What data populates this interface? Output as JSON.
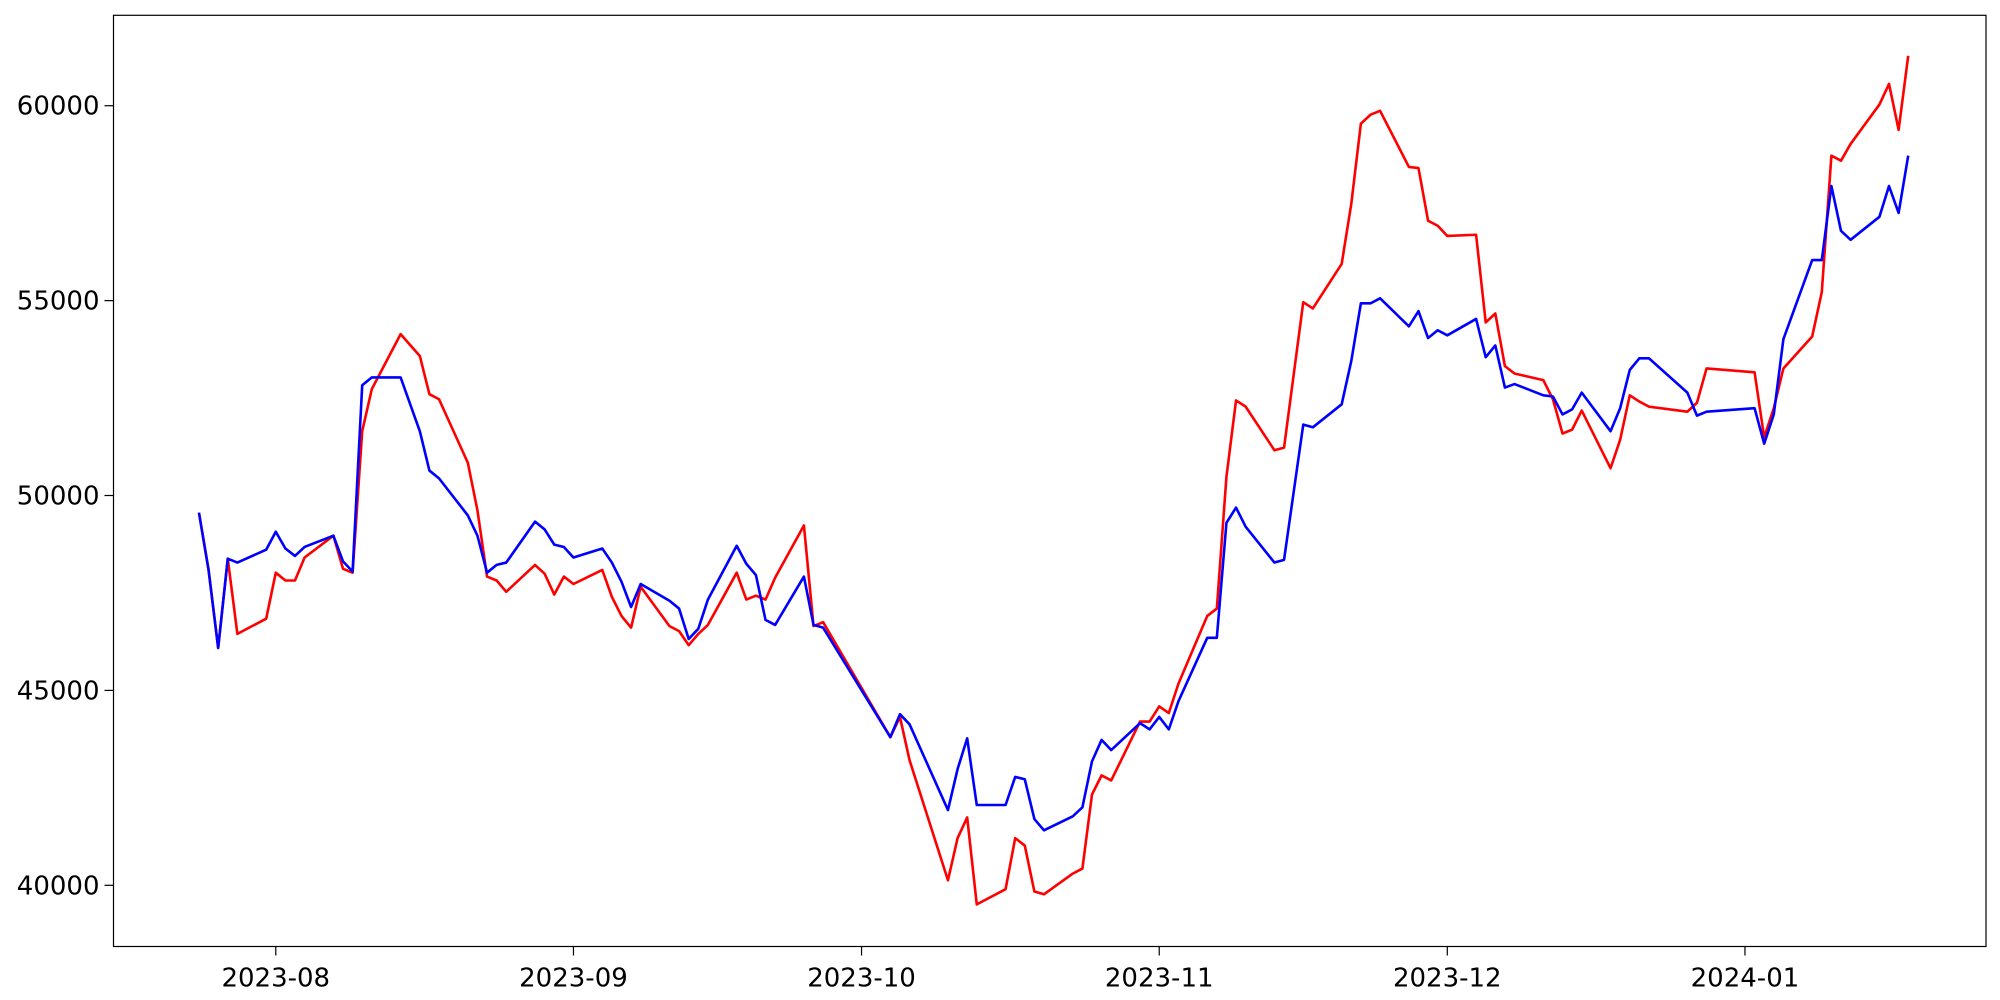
{
  "chart_data": {
    "type": "line",
    "x": [
      -8,
      -7,
      -6,
      -5,
      -4,
      -1,
      0,
      1,
      2,
      3,
      6,
      7,
      8,
      9,
      10,
      13,
      15,
      16,
      17,
      20,
      21,
      22,
      23,
      24,
      27,
      28,
      29,
      30,
      31,
      34,
      35,
      36,
      37,
      38,
      41,
      42,
      43,
      44,
      45,
      48,
      49,
      50,
      51,
      52,
      55,
      56,
      57,
      64,
      65,
      66,
      70,
      71,
      72,
      73,
      76,
      77,
      78,
      79,
      80,
      83,
      84,
      85,
      86,
      87,
      90,
      91,
      92,
      93,
      94,
      97,
      98,
      99,
      100,
      101,
      104,
      105,
      107,
      108,
      111,
      112,
      113,
      114,
      115,
      118,
      119,
      120,
      121,
      122,
      125,
      126,
      127,
      128,
      129,
      132,
      133,
      134,
      135,
      136,
      139,
      140,
      141,
      142,
      143,
      147,
      148,
      149,
      154,
      155,
      156,
      157,
      160,
      161,
      162,
      163,
      164,
      167,
      168,
      169,
      170
    ],
    "series": [
      {
        "color": "#ff0000",
        "values": [
          49560,
          48090,
          46090,
          48380,
          46450,
          46840,
          48020,
          47820,
          47820,
          48410,
          48970,
          48120,
          48020,
          51650,
          52730,
          54140,
          53580,
          52600,
          52470,
          50840,
          49620,
          47920,
          47820,
          47530,
          48220,
          47990,
          47460,
          47920,
          47730,
          48090,
          47400,
          46910,
          46610,
          47660,
          46650,
          46520,
          46160,
          46450,
          46680,
          48020,
          47330,
          47430,
          47330,
          47890,
          49230,
          46650,
          46750,
          43800,
          44320,
          43210,
          40130,
          41210,
          41740,
          39510,
          39900,
          41210,
          41020,
          39840,
          39770,
          40300,
          40430,
          42330,
          42820,
          42690,
          44200,
          44200,
          44590,
          44420,
          45170,
          46910,
          47100,
          50480,
          52440,
          52280,
          51160,
          51230,
          54960,
          54800,
          55940,
          57480,
          59540,
          59770,
          59870,
          58430,
          58400,
          57050,
          56920,
          56660,
          56690,
          54440,
          54670,
          53320,
          53130,
          52960,
          52470,
          51590,
          51690,
          52180,
          50700,
          51430,
          52570,
          52410,
          52280,
          52150,
          52380,
          53260,
          53160,
          51490,
          52240,
          53260,
          54080,
          55220,
          58720,
          58590,
          59020,
          60030,
          60560,
          59380,
          61280
        ]
      },
      {
        "color": "#0000ff",
        "values": [
          49560,
          48090,
          46090,
          48380,
          48280,
          48610,
          49070,
          48640,
          48450,
          48680,
          48970,
          48310,
          48050,
          52830,
          53030,
          53030,
          51650,
          50640,
          50440,
          49490,
          48970,
          48020,
          48220,
          48280,
          49330,
          49130,
          48740,
          48680,
          48410,
          48640,
          48280,
          47790,
          47140,
          47730,
          47300,
          47100,
          46320,
          46580,
          47330,
          48710,
          48250,
          47960,
          46810,
          46680,
          47920,
          46680,
          46610,
          43800,
          44390,
          44130,
          41930,
          42980,
          43770,
          42060,
          42060,
          42780,
          42720,
          41700,
          41410,
          41770,
          42000,
          43180,
          43730,
          43470,
          44160,
          44000,
          44320,
          44000,
          44720,
          46350,
          46350,
          49300,
          49690,
          49200,
          48280,
          48350,
          51820,
          51750,
          52340,
          53450,
          54930,
          54930,
          55060,
          54340,
          54730,
          54040,
          54240,
          54110,
          54530,
          53550,
          53850,
          52770,
          52860,
          52570,
          52540,
          52080,
          52210,
          52640,
          51650,
          52240,
          53220,
          53520,
          53520,
          52640,
          52050,
          52150,
          52240,
          51330,
          52080,
          54010,
          56040,
          56040,
          57940,
          56790,
          56560,
          57150,
          57940,
          57250,
          58720
        ]
      }
    ],
    "xlim": [
      -16.9,
      178.1
    ],
    "ylim": [
      38430,
      62320
    ],
    "xticks": [
      {
        "value": 0,
        "label": "2023-08"
      },
      {
        "value": 31,
        "label": "2023-09"
      },
      {
        "value": 61,
        "label": "2023-10"
      },
      {
        "value": 92,
        "label": "2023-11"
      },
      {
        "value": 122,
        "label": "2023-12"
      },
      {
        "value": 153,
        "label": "2024-01"
      }
    ],
    "yticks": [
      40000,
      45000,
      50000,
      55000,
      60000
    ]
  }
}
